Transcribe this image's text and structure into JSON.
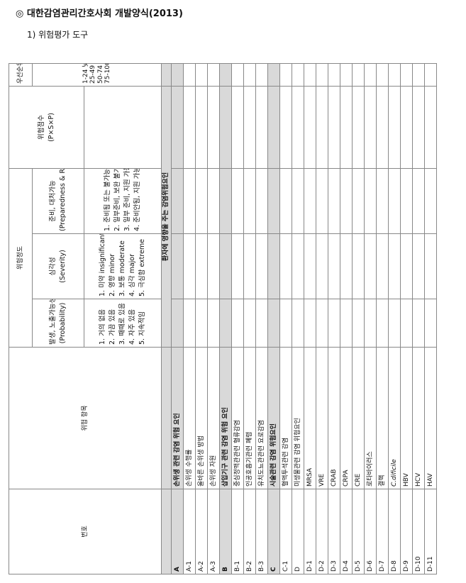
{
  "page_title": "◎ 대한감염관리간호사회 개발양식(2013)",
  "section_title": "1) 위험평가 도구",
  "headers": {
    "number": "번호",
    "item": "위험 항목",
    "risk_degree": "위험정도",
    "probability": {
      "title": "발생, 노출가능성",
      "sub": "(Probability)"
    },
    "severity": {
      "title": "심각성",
      "sub": "(Severity)"
    },
    "preparedness": {
      "title": "준비, 대처가능",
      "sub": "(Preparedness & Respond)"
    },
    "score": {
      "title": "위험점수",
      "sub": "(P×S×P)"
    },
    "priority": "우선순위"
  },
  "criteria": {
    "probability": [
      "1. 거의 없음",
      "2. 가끔 있음",
      "3. 때때로 있음",
      "4. 자주 있음",
      "5. 지속적임"
    ],
    "severity": [
      "1. 미약 insignificant",
      "2. 영향 minor",
      "3. 보통 moderate",
      "4. 심각 major",
      "5. 극심함 extreme"
    ],
    "preparedness": [
      "1. 준비됨 또는 불가능",
      "2. 일부준비, 보완 불가",
      "3. 일부 준비, 지원 가능",
      "4. 준비안됨, 지원 가능"
    ],
    "priority": [
      "1-24 낮은 위험",
      "25-49 중간 위험",
      "50-74 높은 위험",
      "75-100 매우 위험"
    ]
  },
  "patient_factor": "환자에 영향을 주는 감염위험요인",
  "rows": [
    {
      "no": "A",
      "item": "손위생 관련 감염 위험 요인",
      "header": true
    },
    {
      "no": "A-1",
      "item": "손위생 수행률"
    },
    {
      "no": "A-2",
      "item": "올바른 손위생 방법"
    },
    {
      "no": "A-3",
      "item": "손위생 자원"
    },
    {
      "no": "B",
      "item": "삽입기구 관련 감염 위험 요인",
      "header": true
    },
    {
      "no": "B-1",
      "item": "중심정맥관관련 혈류감염"
    },
    {
      "no": "B-2",
      "item": "인공호흡기관련 폐렴"
    },
    {
      "no": "B-3",
      "item": "유치도뇨관관련 요로감염"
    },
    {
      "no": "C",
      "item": "시술관련 감염 위험요인",
      "header": true
    },
    {
      "no": "C-1",
      "item": "혈액투석관련 감염"
    },
    {
      "no": "D",
      "item": "미생물관련 감염 위험요인"
    },
    {
      "no": "D-1",
      "item": "MRSA"
    },
    {
      "no": "D-2",
      "item": "VRE"
    },
    {
      "no": "D-3",
      "item": "CRAB"
    },
    {
      "no": "D-4",
      "item": "CRPA"
    },
    {
      "no": "D-5",
      "item": "CRE"
    },
    {
      "no": "D-6",
      "item": "로타바이러스"
    },
    {
      "no": "D-7",
      "item": "결핵"
    },
    {
      "no": "D-8",
      "item": "C.dificile",
      "italic": true
    },
    {
      "no": "D-9",
      "item": "HBV"
    },
    {
      "no": "D-10",
      "item": "HCV"
    },
    {
      "no": "D-11",
      "item": "HAV"
    }
  ]
}
